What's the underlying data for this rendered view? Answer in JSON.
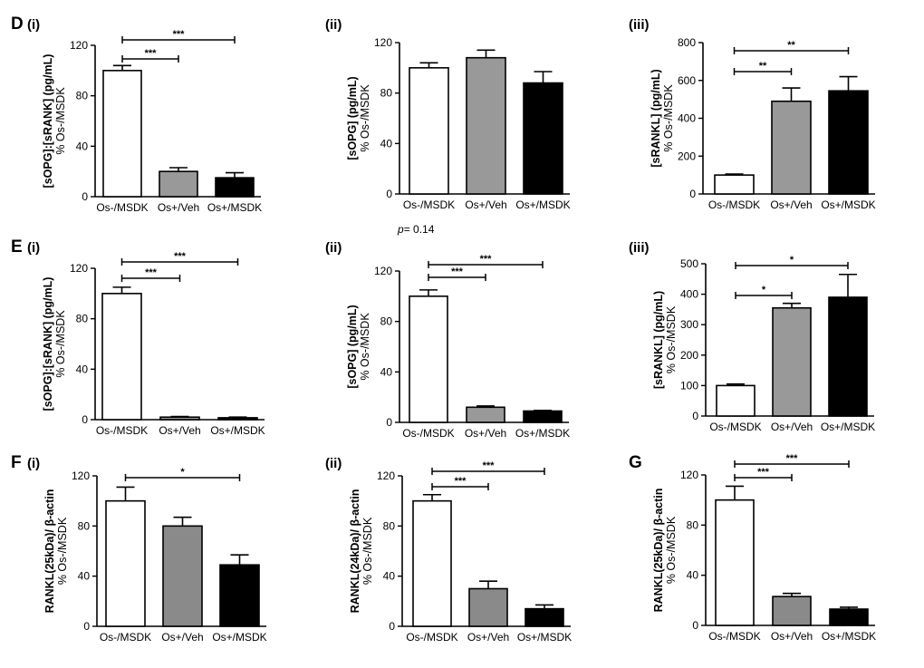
{
  "figure_colors": {
    "open": "#ffffff",
    "grey": "#999999",
    "dark_grey": "#8a8a8a",
    "black": "#000000"
  },
  "chart_data": [
    {
      "id": "D-i",
      "type": "bar",
      "label": "D",
      "sublabel": "(i)",
      "ylabel_main": "[sOPG]:[sRANK] (pg/mL)",
      "ylabel_sub": "% Os-/MSDK",
      "categories": [
        "Os-/MSDK",
        "Os+/Veh",
        "Os+/MSDK"
      ],
      "values": [
        100,
        20,
        15
      ],
      "errors": [
        4,
        3,
        4
      ],
      "colors": [
        "#ffffff",
        "#999999",
        "#000000"
      ],
      "ylim": [
        0,
        120
      ],
      "yticks": [
        0,
        40,
        80,
        120
      ],
      "sig": [
        {
          "from": 0,
          "to": 1,
          "label": "***"
        },
        {
          "from": 0,
          "to": 2,
          "label": "***"
        }
      ]
    },
    {
      "id": "D-ii",
      "type": "bar",
      "label": "",
      "sublabel": "(ii)",
      "ylabel_main": "[sOPG] (pg/mL)",
      "ylabel_sub": "% Os-/MSDK",
      "categories": [
        "Os-/MSDK",
        "Os+/Veh",
        "Os+/MSDK"
      ],
      "values": [
        100,
        108,
        88
      ],
      "errors": [
        4,
        6,
        9
      ],
      "colors": [
        "#ffffff",
        "#999999",
        "#000000"
      ],
      "ylim": [
        0,
        120
      ],
      "yticks": [
        0,
        40,
        80,
        120
      ],
      "sig": [],
      "note": "p= 0.14"
    },
    {
      "id": "D-iii",
      "type": "bar",
      "label": "",
      "sublabel": "(iii)",
      "ylabel_main": "[sRANKL] (pg/mL)",
      "ylabel_sub": "% Os-/MSDK",
      "categories": [
        "Os-/MSDK",
        "Os+/Veh",
        "Os+/MSDK"
      ],
      "values": [
        100,
        490,
        545
      ],
      "errors": [
        5,
        70,
        75
      ],
      "colors": [
        "#ffffff",
        "#999999",
        "#000000"
      ],
      "ylim": [
        0,
        800
      ],
      "yticks": [
        0,
        200,
        400,
        600,
        800
      ],
      "sig": [
        {
          "from": 0,
          "to": 1,
          "label": "**"
        },
        {
          "from": 0,
          "to": 2,
          "label": "**"
        }
      ]
    },
    {
      "id": "E-i",
      "type": "bar",
      "label": "E",
      "sublabel": "(i)",
      "ylabel_main": "[sOPG]:[sRANK] (pg/mL)",
      "ylabel_sub": "% Os-/MSDK",
      "categories": [
        "Os-/MSDK",
        "Os+/Veh",
        "Os+/MSDK"
      ],
      "values": [
        100,
        2,
        1.5
      ],
      "errors": [
        5,
        0.5,
        0.5
      ],
      "colors": [
        "#ffffff",
        "#999999",
        "#000000"
      ],
      "ylim": [
        0,
        120
      ],
      "yticks": [
        0,
        40,
        80,
        120
      ],
      "sig": [
        {
          "from": 0,
          "to": 1,
          "label": "***"
        },
        {
          "from": 0,
          "to": 2,
          "label": "***"
        }
      ]
    },
    {
      "id": "E-ii",
      "type": "bar",
      "label": "",
      "sublabel": "(ii)",
      "ylabel_main": "[sOPG] (pg/mL)",
      "ylabel_sub": "% Os-/MSDK",
      "categories": [
        "Os-/MSDK",
        "Os+/Veh",
        "Os+/MSDK"
      ],
      "values": [
        100,
        12,
        9
      ],
      "errors": [
        5,
        1,
        0.5
      ],
      "colors": [
        "#ffffff",
        "#999999",
        "#000000"
      ],
      "ylim": [
        0,
        120
      ],
      "yticks": [
        0,
        40,
        80,
        120
      ],
      "sig": [
        {
          "from": 0,
          "to": 1,
          "label": "***"
        },
        {
          "from": 0,
          "to": 2,
          "label": "***"
        }
      ]
    },
    {
      "id": "E-iii",
      "type": "bar",
      "label": "",
      "sublabel": "(iii)",
      "ylabel_main": "[sRANKL] (pg/mL)",
      "ylabel_sub": "% Os-/MSDK",
      "categories": [
        "Os-/MSDK",
        "Os+/Veh",
        "Os+/MSDK"
      ],
      "values": [
        100,
        355,
        390
      ],
      "errors": [
        5,
        15,
        75
      ],
      "colors": [
        "#ffffff",
        "#999999",
        "#000000"
      ],
      "ylim": [
        0,
        500
      ],
      "yticks": [
        0,
        100,
        200,
        300,
        400,
        500
      ],
      "sig": [
        {
          "from": 0,
          "to": 1,
          "label": "*"
        },
        {
          "from": 0,
          "to": 2,
          "label": "*"
        }
      ]
    },
    {
      "id": "F-i",
      "type": "bar",
      "label": "F",
      "sublabel": "(i)",
      "ylabel_main": "RANKL(25kDa)/ β-actin",
      "ylabel_sub": "% Os-/MSDK",
      "categories": [
        "Os-/MSDK",
        "Os+/Veh",
        "Os+/MSDK"
      ],
      "values": [
        100,
        80,
        49
      ],
      "errors": [
        11,
        7,
        8
      ],
      "colors": [
        "#ffffff",
        "#8a8a8a",
        "#000000"
      ],
      "ylim": [
        0,
        120
      ],
      "yticks": [
        0,
        40,
        80,
        120
      ],
      "sig": [
        {
          "from": 0,
          "to": 2,
          "label": "*"
        }
      ]
    },
    {
      "id": "F-ii",
      "type": "bar",
      "label": "",
      "sublabel": "(ii)",
      "ylabel_main": "RANKL(24kDa)/ β-actin",
      "ylabel_sub": "% Os-/MSDK",
      "categories": [
        "Os-/MSDK",
        "Os+/Veh",
        "Os+/MSDK"
      ],
      "values": [
        100,
        30,
        14
      ],
      "errors": [
        5,
        6,
        3
      ],
      "colors": [
        "#ffffff",
        "#8a8a8a",
        "#000000"
      ],
      "ylim": [
        0,
        120
      ],
      "yticks": [
        0,
        40,
        80,
        120
      ],
      "sig": [
        {
          "from": 0,
          "to": 1,
          "label": "***"
        },
        {
          "from": 0,
          "to": 2,
          "label": "***"
        }
      ]
    },
    {
      "id": "G",
      "type": "bar",
      "label": "G",
      "sublabel": "",
      "ylabel_main": "RANKL(25kDa)/ β-actin",
      "ylabel_sub": "% Os-/MSDK",
      "categories": [
        "Os-/MSDK",
        "Os+/Veh",
        "Os+/MSDK"
      ],
      "values": [
        100,
        23,
        13
      ],
      "errors": [
        11,
        2.5,
        1.5
      ],
      "colors": [
        "#ffffff",
        "#8a8a8a",
        "#000000"
      ],
      "ylim": [
        0,
        120
      ],
      "yticks": [
        0,
        40,
        80,
        120
      ],
      "sig": [
        {
          "from": 0,
          "to": 1,
          "label": "***"
        },
        {
          "from": 0,
          "to": 2,
          "label": "***"
        }
      ]
    }
  ]
}
